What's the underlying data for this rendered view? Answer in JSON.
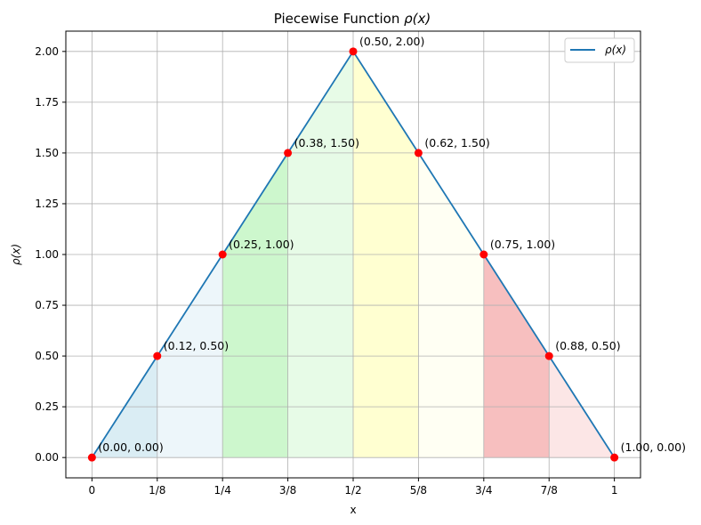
{
  "chart_data": {
    "type": "line",
    "title": "Piecewise Function ρ(x)",
    "title_prefix": "Piecewise Function",
    "title_math": "ρ(x)",
    "xlabel": "x",
    "ylabel": "ρ(x)",
    "xlim": [
      -0.05,
      1.05
    ],
    "ylim": [
      -0.1,
      2.1
    ],
    "grid": true,
    "legend_position": "top-right",
    "x_ticks": [
      0,
      0.125,
      0.25,
      0.375,
      0.5,
      0.625,
      0.75,
      0.875,
      1
    ],
    "x_tick_labels": [
      "0",
      "1/8",
      "1/4",
      "3/8",
      "1/2",
      "5/8",
      "3/4",
      "7/8",
      "1"
    ],
    "y_ticks": [
      0,
      0.25,
      0.5,
      0.75,
      1,
      1.25,
      1.5,
      1.75,
      2
    ],
    "y_tick_labels": [
      "0.00",
      "0.25",
      "0.50",
      "0.75",
      "1.00",
      "1.25",
      "1.50",
      "1.75",
      "2.00"
    ],
    "series": [
      {
        "name": "ρ(x)",
        "color": "#1f77b4",
        "x": [
          0,
          0.125,
          0.25,
          0.375,
          0.5,
          0.625,
          0.75,
          0.875,
          1
        ],
        "y": [
          0,
          0.5,
          1,
          1.5,
          2,
          1.5,
          1,
          0.5,
          0
        ]
      }
    ],
    "marker_color": "#ff0000",
    "points": [
      {
        "x": 0,
        "y": 0,
        "label": "(0.00, 0.00)"
      },
      {
        "x": 0.125,
        "y": 0.5,
        "label": "(0.12, 0.50)"
      },
      {
        "x": 0.25,
        "y": 1,
        "label": "(0.25, 1.00)"
      },
      {
        "x": 0.375,
        "y": 1.5,
        "label": "(0.38, 1.50)"
      },
      {
        "x": 0.5,
        "y": 2,
        "label": "(0.50, 2.00)"
      },
      {
        "x": 0.625,
        "y": 1.5,
        "label": "(0.62, 1.50)"
      },
      {
        "x": 0.75,
        "y": 1,
        "label": "(0.75, 1.00)"
      },
      {
        "x": 0.875,
        "y": 0.5,
        "label": "(0.88, 0.50)"
      },
      {
        "x": 1,
        "y": 0,
        "label": "(1.00, 0.00)"
      }
    ],
    "fill_segments": [
      {
        "x0": 0,
        "x1": 0.125,
        "color": "#add8e6",
        "opacity": 0.45
      },
      {
        "x0": 0.125,
        "x1": 0.25,
        "color": "#add8e6",
        "opacity": 0.22
      },
      {
        "x0": 0.25,
        "x1": 0.375,
        "color": "#90ee90",
        "opacity": 0.45
      },
      {
        "x0": 0.375,
        "x1": 0.5,
        "color": "#90ee90",
        "opacity": 0.22
      },
      {
        "x0": 0.5,
        "x1": 0.625,
        "color": "#ffff99",
        "opacity": 0.45
      },
      {
        "x0": 0.625,
        "x1": 0.75,
        "color": "#ffff99",
        "opacity": 0.12
      },
      {
        "x0": 0.75,
        "x1": 0.875,
        "color": "#f08080",
        "opacity": 0.5
      },
      {
        "x0": 0.875,
        "x1": 1,
        "color": "#f08080",
        "opacity": 0.2
      }
    ]
  }
}
